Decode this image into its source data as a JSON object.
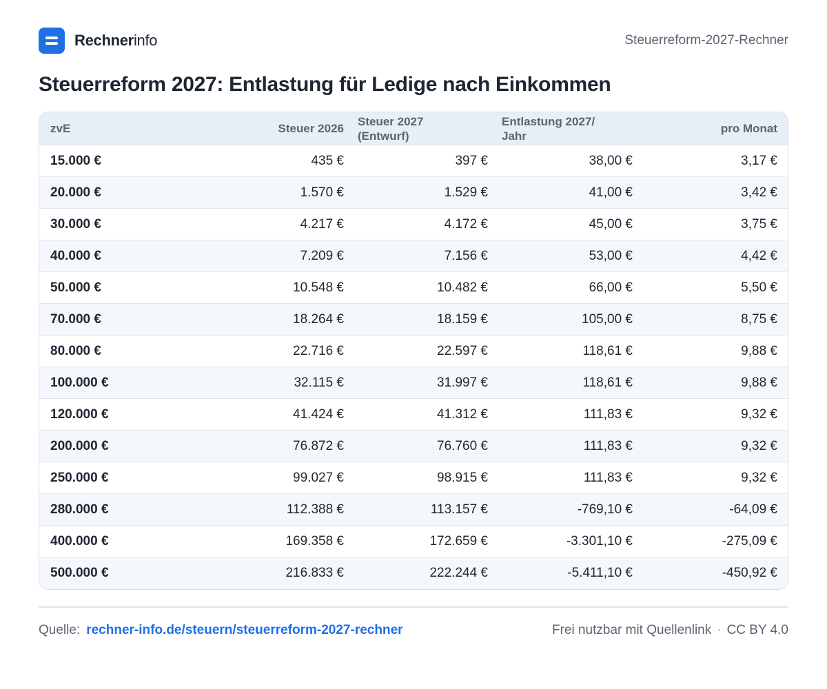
{
  "brand": {
    "strong": "Rechner",
    "light": "info"
  },
  "header": {
    "right_label": "Steuerreform-2027-Rechner"
  },
  "chart_data": {
    "type": "table",
    "title": "Steuerreform 2027: Entlastung für Ledige nach Einkommen",
    "columns": {
      "c1": "zvE",
      "c2": "Steuer 2026",
      "c3_line1": "Steuer 2027",
      "c3_line2": "(Entwurf)",
      "c4_line1": "Entlastung 2027/",
      "c4_line2": "Jahr",
      "c5": "pro Monat"
    },
    "rows": [
      [
        "15.000 €",
        "435 €",
        "397 €",
        "38,00 €",
        "3,17 €"
      ],
      [
        "20.000 €",
        "1.570 €",
        "1.529 €",
        "41,00 €",
        "3,42 €"
      ],
      [
        "30.000 €",
        "4.217 €",
        "4.172 €",
        "45,00 €",
        "3,75 €"
      ],
      [
        "40.000 €",
        "7.209 €",
        "7.156 €",
        "53,00 €",
        "4,42 €"
      ],
      [
        "50.000 €",
        "10.548 €",
        "10.482 €",
        "66,00 €",
        "5,50 €"
      ],
      [
        "70.000 €",
        "18.264 €",
        "18.159 €",
        "105,00 €",
        "8,75 €"
      ],
      [
        "80.000 €",
        "22.716 €",
        "22.597 €",
        "118,61 €",
        "9,88 €"
      ],
      [
        "100.000 €",
        "32.115 €",
        "31.997 €",
        "118,61 €",
        "9,88 €"
      ],
      [
        "120.000 €",
        "41.424 €",
        "41.312 €",
        "111,83 €",
        "9,32 €"
      ],
      [
        "200.000 €",
        "76.872 €",
        "76.760 €",
        "111,83 €",
        "9,32 €"
      ],
      [
        "250.000 €",
        "99.027 €",
        "98.915 €",
        "111,83 €",
        "9,32 €"
      ],
      [
        "280.000 €",
        "112.388 €",
        "113.157 €",
        "-769,10 €",
        "-64,09 €"
      ],
      [
        "400.000 €",
        "169.358 €",
        "172.659 €",
        "-3.301,10 €",
        "-275,09 €"
      ],
      [
        "500.000 €",
        "216.833 €",
        "222.244 €",
        "-5.411,10 €",
        "-450,92 €"
      ]
    ]
  },
  "footer": {
    "source_label": "Quelle:",
    "source_link": "rechner-info.de/steuern/steuerreform-2027-rechner",
    "license_text": "Frei nutzbar mit Quellenlink",
    "separator": "·",
    "license_name": "CC BY 4.0"
  }
}
